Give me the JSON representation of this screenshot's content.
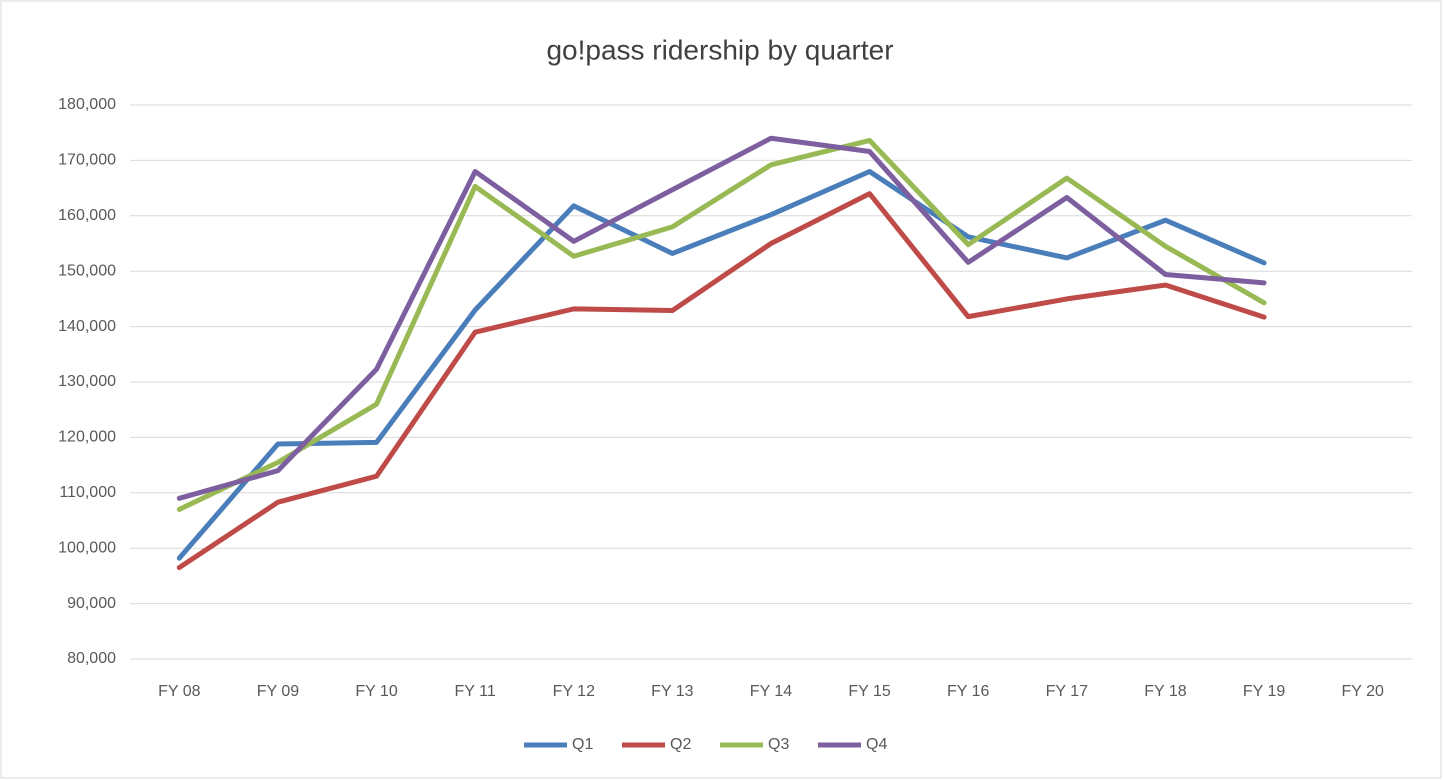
{
  "chart_data": {
    "type": "line",
    "title": "go!pass ridership by quarter",
    "categories": [
      "FY 08",
      "FY 09",
      "FY 10",
      "FY 11",
      "FY 12",
      "FY 13",
      "FY 14",
      "FY 15",
      "FY 16",
      "FY 17",
      "FY 18",
      "FY 19",
      "FY 20"
    ],
    "series": [
      {
        "name": "Q1",
        "color": "#4a7ebb",
        "values": [
          98200,
          118800,
          119100,
          143000,
          161800,
          153200,
          160200,
          168000,
          156200,
          152400,
          159200,
          151500,
          null
        ]
      },
      {
        "name": "Q2",
        "color": "#be4b48",
        "values": [
          96500,
          108300,
          113000,
          139000,
          143200,
          142900,
          155000,
          164000,
          141800,
          145000,
          147500,
          141700,
          null
        ]
      },
      {
        "name": "Q3",
        "color": "#98b954",
        "values": [
          107000,
          115500,
          126000,
          165300,
          152700,
          158000,
          169200,
          173600,
          154800,
          166800,
          154500,
          144300,
          null
        ]
      },
      {
        "name": "Q4",
        "color": "#7d5fa0",
        "values": [
          109000,
          114000,
          132300,
          168000,
          155400,
          164700,
          174000,
          171600,
          151600,
          163300,
          149400,
          147900,
          null
        ]
      }
    ],
    "ylim": [
      80000,
      180000
    ],
    "yticks": [
      {
        "value": 80000,
        "label": "80,000"
      },
      {
        "value": 90000,
        "label": "90,000"
      },
      {
        "value": 100000,
        "label": "100,000"
      },
      {
        "value": 110000,
        "label": "110,000"
      },
      {
        "value": 120000,
        "label": "120,000"
      },
      {
        "value": 130000,
        "label": "130,000"
      },
      {
        "value": 140000,
        "label": "140,000"
      },
      {
        "value": 150000,
        "label": "150,000"
      },
      {
        "value": 160000,
        "label": "160,000"
      },
      {
        "value": 170000,
        "label": "170,000"
      },
      {
        "value": 180000,
        "label": "180,000"
      }
    ],
    "grid": true,
    "legend": "bottom"
  }
}
